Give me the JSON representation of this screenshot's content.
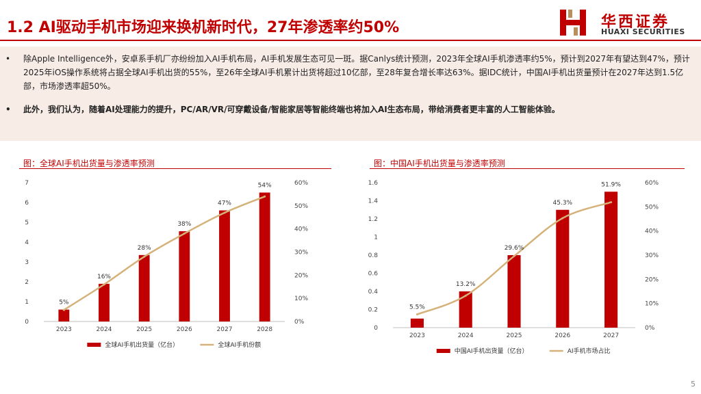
{
  "header": {
    "title": "1.2 AI驱动手机市场迎来换机新时代，27年渗透率约50%",
    "logo_cn": "华西证券",
    "logo_en": "HUAXI SECURITIES"
  },
  "bullets": [
    "除Apple Intelligence外，安卓系手机厂亦纷纷加入AI手机布局，AI手机发展生态可见一斑。据Canlys统计预测，2023年全球AI手机渗透率约5%，预计到2027年有望达到47%，预计2025年iOS操作系统将占据全球AI手机出货的55%，至26年全球AI手机累计出货将超过10亿部，至28年复合增长率达63%。据IDC统计，中国AI手机出货量预计在2027年达到1.5亿部，市场渗透率超50%。",
    "此外，我们认为，随着AI处理能力的提升，PC/AR/VR/可穿戴设备/智能家居等智能终端也将加入AI生态布局，带给消费者更丰富的人工智能体验。"
  ],
  "bullet_symbol": "•",
  "page_number": "5",
  "colors": {
    "accent": "#c00000",
    "bar": "#c00000",
    "line": "#d4b27a",
    "band": "#f7ece6"
  },
  "chart_data": [
    {
      "type": "bar",
      "title": "图：全球AI手机出货量与渗透率预测",
      "categories": [
        "2023",
        "2024",
        "2025",
        "2026",
        "2027",
        "2028"
      ],
      "y_left": {
        "range": [
          0,
          7
        ],
        "ticks": [
          "0",
          "1",
          "2",
          "3",
          "4",
          "5",
          "6",
          "7"
        ]
      },
      "y_right": {
        "range": [
          0,
          60
        ],
        "ticks": [
          "0%",
          "10%",
          "20%",
          "30%",
          "40%",
          "50%",
          "60%"
        ]
      },
      "series": [
        {
          "name": "全球AI手机出货量（亿台）",
          "type": "bar",
          "axis": "left",
          "values": [
            0.6,
            1.9,
            3.35,
            4.55,
            5.6,
            6.5
          ]
        },
        {
          "name": "全球AI手机份额",
          "type": "line",
          "axis": "right",
          "values": [
            5,
            16,
            28,
            38,
            47,
            54
          ],
          "labels": [
            "5%",
            "16%",
            "28%",
            "38%",
            "47%",
            "54%"
          ]
        }
      ]
    },
    {
      "type": "bar",
      "title": "图：中国AI手机出货量与渗透率预测",
      "categories": [
        "2023",
        "2024",
        "2025",
        "2026",
        "2027"
      ],
      "y_left": {
        "range": [
          0,
          1.6
        ],
        "ticks": [
          "0",
          "0.2",
          "0.4",
          "0.6",
          "0.8",
          "1",
          "1.2",
          "1.4",
          "1.6"
        ]
      },
      "y_right": {
        "range": [
          0,
          60
        ],
        "ticks": [
          "0%",
          "10%",
          "20%",
          "30%",
          "40%",
          "50%",
          "60%"
        ]
      },
      "series": [
        {
          "name": "中国AI手机出货量（亿台）",
          "type": "bar",
          "axis": "left",
          "values": [
            0.1,
            0.4,
            0.8,
            1.3,
            1.5
          ]
        },
        {
          "name": "AI手机市场占比",
          "type": "line",
          "axis": "right",
          "values": [
            5.5,
            13.2,
            29.6,
            45.3,
            51.9
          ],
          "labels": [
            "5.5%",
            "13.2%",
            "29.6%",
            "45.3%",
            "51.9%"
          ]
        }
      ]
    }
  ]
}
